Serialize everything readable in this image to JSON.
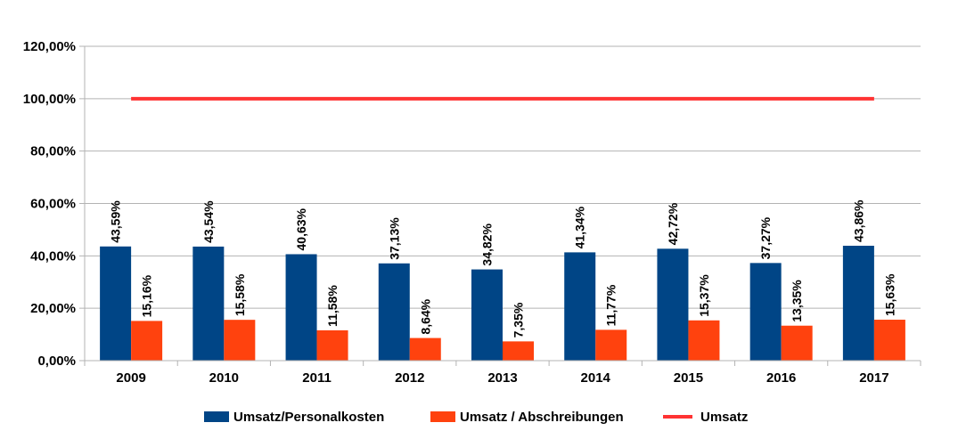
{
  "chart_data": {
    "type": "bar",
    "title": "",
    "xlabel": "",
    "ylabel": "",
    "ylim": [
      0,
      120
    ],
    "yticks": [
      "0,00%",
      "20,00%",
      "40,00%",
      "60,00%",
      "80,00%",
      "100,00%",
      "120,00%"
    ],
    "ytick_values": [
      0,
      20,
      40,
      60,
      80,
      100,
      120
    ],
    "grid": true,
    "legend_position": "bottom",
    "categories": [
      "2009",
      "2010",
      "2011",
      "2012",
      "2013",
      "2014",
      "2015",
      "2016",
      "2017"
    ],
    "series": [
      {
        "name": "Umsatz/Personalkosten",
        "type": "bar",
        "color": "#004586",
        "values": [
          43.59,
          43.54,
          40.63,
          37.13,
          34.82,
          41.34,
          42.72,
          37.27,
          43.86
        ],
        "labels": [
          "43,59%",
          "43,54%",
          "40,63%",
          "37,13%",
          "34,82%",
          "41,34%",
          "42,72%",
          "37,27%",
          "43,86%"
        ]
      },
      {
        "name": "Umsatz / Abschreibungen",
        "type": "bar",
        "color": "#ff420e",
        "values": [
          15.16,
          15.58,
          11.58,
          8.64,
          7.35,
          11.77,
          15.37,
          13.35,
          15.63
        ],
        "labels": [
          "15,16%",
          "15,58%",
          "11,58%",
          "8,64%",
          "7,35%",
          "11,77%",
          "15,37%",
          "13,35%",
          "15,63%"
        ]
      },
      {
        "name": "Umsatz",
        "type": "line",
        "color": "#ff3333",
        "values": [
          100,
          100,
          100,
          100,
          100,
          100,
          100,
          100,
          100
        ]
      }
    ]
  }
}
